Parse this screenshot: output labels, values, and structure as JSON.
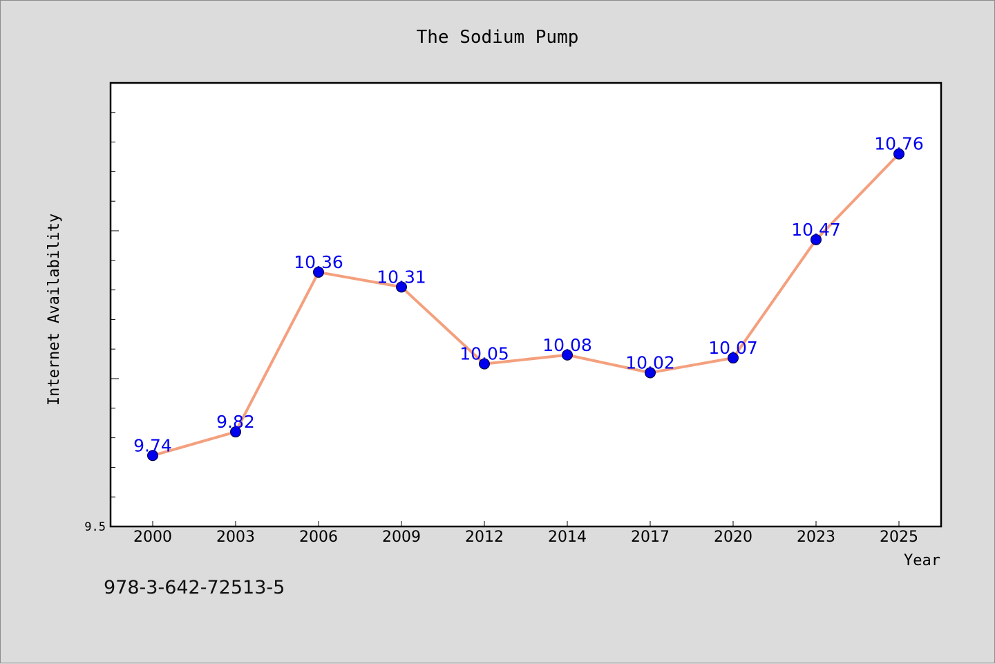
{
  "chart_data": {
    "type": "line",
    "title": "The Sodium Pump",
    "xlabel": "Year",
    "ylabel": "Internet Availability",
    "categories": [
      "2000",
      "2003",
      "2006",
      "2009",
      "2012",
      "2014",
      "2017",
      "2020",
      "2023",
      "2025"
    ],
    "series": [
      {
        "values": [
          9.74,
          9.82,
          10.36,
          10.31,
          10.05,
          10.08,
          10.02,
          10.07,
          10.47,
          10.76
        ]
      }
    ],
    "ylim": [
      9.5,
      11.0
    ],
    "ytick_labels": [
      {
        "value": 9.5,
        "label": "9.5"
      }
    ],
    "y_minor_step": 0.1,
    "y_major_step": 0.5,
    "grid": false,
    "legend": "none",
    "data_labels": true,
    "colors": {
      "line": "#f4a07e",
      "marker": "#0000ee",
      "marker_edge": "#000033",
      "data_label": "#0000ee",
      "plot_background": "#ffffff",
      "figure_background": "#dcdcdc"
    }
  },
  "footnote": "978-3-642-72513-5"
}
